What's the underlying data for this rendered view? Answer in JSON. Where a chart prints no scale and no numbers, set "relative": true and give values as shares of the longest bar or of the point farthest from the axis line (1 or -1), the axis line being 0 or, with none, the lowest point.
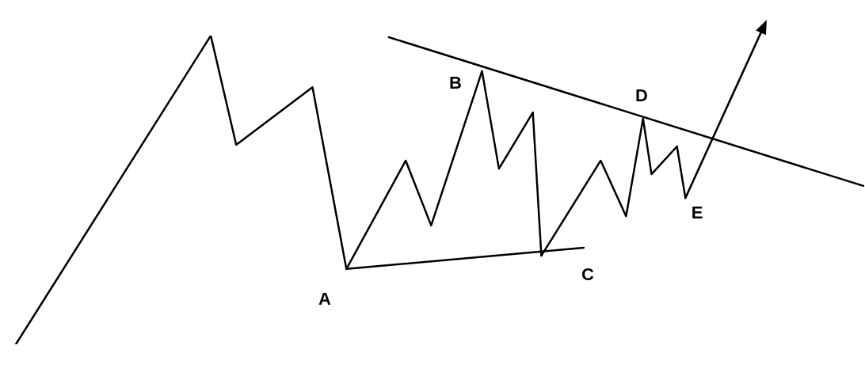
{
  "chart_data": {
    "type": "line",
    "relative": true,
    "legend": false,
    "marker": "none",
    "line_style": "solid",
    "categories": [
      null,
      null,
      null,
      null,
      null,
      null,
      null,
      null,
      null,
      null,
      null,
      null,
      null,
      null,
      null,
      null,
      null,
      null,
      null,
      null,
      null,
      null,
      null,
      null,
      null,
      null,
      null,
      null,
      null,
      null,
      null,
      null,
      null,
      null,
      null,
      null,
      null,
      null,
      null,
      null,
      null,
      null,
      null,
      null,
      null,
      null,
      null,
      null,
      null,
      null,
      null,
      null,
      null,
      null,
      null,
      null,
      null,
      null,
      null,
      null,
      null,
      null,
      null,
      null,
      null,
      null,
      null,
      null,
      null,
      null,
      null,
      null,
      null,
      null,
      null,
      null,
      null,
      null,
      null,
      null,
      null,
      null,
      null,
      null,
      null,
      null,
      null,
      null,
      null,
      null,
      null,
      null,
      null,
      null,
      null,
      null,
      null,
      null,
      null,
      null,
      null
    ],
    "series": [
      {
        "color": "#000000",
        "values": [
          0,
          null,
          null,
          null,
          null,
          null,
          null,
          null,
          null,
          null,
          null,
          null,
          null,
          null,
          null,
          null,
          null,
          null,
          null,
          null,
          null,
          null,
          null,
          1,
          null,
          null,
          0.646,
          null,
          null,
          null,
          null,
          null,
          null,
          null,
          null,
          0.833,
          null,
          null,
          null,
          0.244,
          null,
          null,
          null,
          null,
          null,
          null,
          0.595,
          null,
          null,
          0.385,
          null,
          null,
          null,
          null,
          null,
          0.885,
          null,
          0.569,
          null,
          null,
          null,
          0.751,
          0.287,
          null,
          null,
          null,
          null,
          null,
          null,
          0.595,
          null,
          null,
          0.415,
          null,
          0.731,
          0.551,
          null,
          null,
          0.641,
          0.474,
          null,
          null,
          null,
          null,
          null,
          null,
          null,
          null,
          null,
          null,
          null,
          null,
          null,
          null,
          null,
          null,
          null,
          null,
          null,
          null,
          null
        ]
      },
      {
        "color": "#000000",
        "values": [
          null,
          null,
          null,
          null,
          null,
          null,
          null,
          null,
          null,
          null,
          null,
          null,
          null,
          null,
          null,
          null,
          null,
          null,
          null,
          null,
          null,
          null,
          null,
          null,
          null,
          null,
          null,
          null,
          null,
          null,
          null,
          null,
          null,
          null,
          null,
          null,
          null,
          null,
          null,
          null,
          null,
          null,
          null,
          null,
          0.995,
          null,
          null,
          null,
          null,
          null,
          null,
          null,
          null,
          null,
          null,
          null,
          null,
          null,
          null,
          null,
          null,
          null,
          null,
          null,
          null,
          null,
          null,
          null,
          null,
          null,
          null,
          null,
          null,
          null,
          null,
          null,
          null,
          null,
          null,
          null,
          null,
          null,
          null,
          null,
          null,
          null,
          null,
          null,
          null,
          null,
          null,
          null,
          null,
          null,
          null,
          null,
          null,
          null,
          null,
          null,
          0.513
        ]
      },
      {
        "color": "#000000",
        "values": [
          null,
          null,
          null,
          null,
          null,
          null,
          null,
          null,
          null,
          null,
          null,
          null,
          null,
          null,
          null,
          null,
          null,
          null,
          null,
          null,
          null,
          null,
          null,
          null,
          null,
          null,
          null,
          null,
          null,
          null,
          null,
          null,
          null,
          null,
          null,
          null,
          null,
          null,
          null,
          0.244,
          null,
          null,
          null,
          null,
          null,
          null,
          null,
          null,
          null,
          null,
          null,
          null,
          null,
          null,
          null,
          null,
          null,
          null,
          null,
          null,
          null,
          null,
          null,
          null,
          null,
          null,
          null,
          0.313,
          null,
          null,
          null,
          null,
          null,
          null,
          null,
          null,
          null,
          null,
          null,
          null,
          null,
          null,
          null,
          null,
          null,
          null,
          null,
          null,
          null,
          null,
          null,
          null,
          null,
          null,
          null,
          null,
          null,
          null,
          null,
          null,
          null
        ]
      }
    ],
    "annotations": [
      "A",
      "B",
      "C",
      "D",
      "E"
    ]
  }
}
